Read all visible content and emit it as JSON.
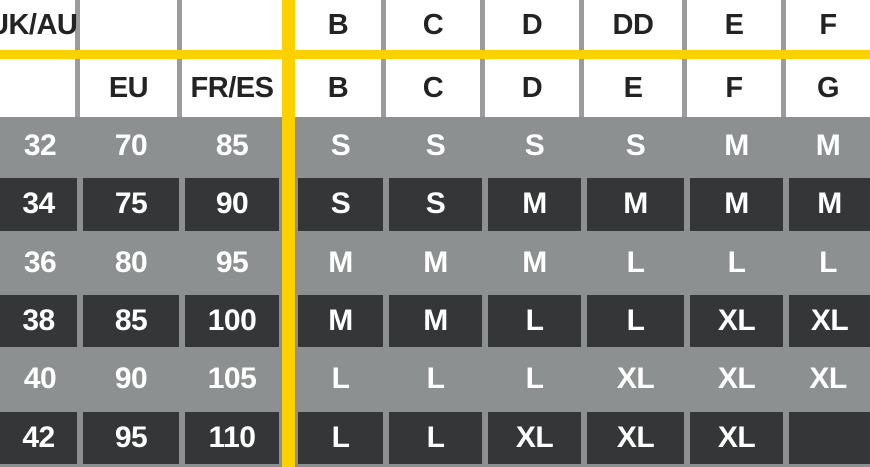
{
  "colors": {
    "accent_yellow": "#fdd000",
    "row_gray": "#8d9091",
    "row_dark": "#343637",
    "separator_gray": "#9b9b9e",
    "header_bg": "#ffffff",
    "header_text": "#232323",
    "cell_text": "#ffffff"
  },
  "chart_data": {
    "type": "table",
    "header_row1": [
      "UK/AU",
      "",
      "",
      "B",
      "C",
      "D",
      "DD",
      "E",
      "F"
    ],
    "header_row2": [
      "",
      "EU",
      "FR/ES",
      "B",
      "C",
      "D",
      "E",
      "F",
      "G"
    ],
    "rows": [
      {
        "style": "gray",
        "cells": [
          "32",
          "70",
          "85",
          "S",
          "S",
          "S",
          "S",
          "M",
          "M"
        ]
      },
      {
        "style": "dark",
        "cells": [
          "34",
          "75",
          "90",
          "S",
          "S",
          "M",
          "M",
          "M",
          "M"
        ]
      },
      {
        "style": "gray",
        "cells": [
          "36",
          "80",
          "95",
          "M",
          "M",
          "M",
          "L",
          "L",
          "L"
        ]
      },
      {
        "style": "dark",
        "cells": [
          "38",
          "85",
          "100",
          "M",
          "M",
          "L",
          "L",
          "XL",
          "XL"
        ]
      },
      {
        "style": "gray",
        "cells": [
          "40",
          "90",
          "105",
          "L",
          "L",
          "L",
          "XL",
          "XL",
          "XL"
        ]
      },
      {
        "style": "dark",
        "cells": [
          "42",
          "95",
          "110",
          "L",
          "L",
          "XL",
          "XL",
          "XL",
          ""
        ]
      }
    ]
  }
}
